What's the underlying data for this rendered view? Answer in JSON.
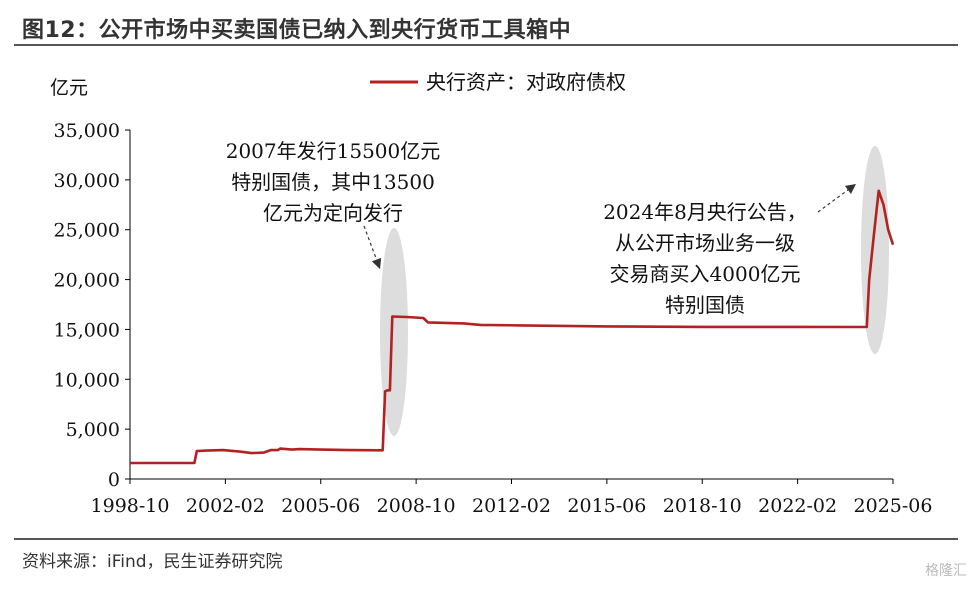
{
  "header": {
    "title": "图12：公开市场中买卖国债已纳入到央行货币工具箱中"
  },
  "footer": {
    "source": "资料来源：iFind，民生证券研究院",
    "watermark": "格隆汇"
  },
  "colors": {
    "series": "#b22222",
    "highlight": "#d9d9d9",
    "axis": "#000000"
  },
  "chart_data": {
    "type": "line",
    "title": "",
    "ylabel": "亿元",
    "xlabel": "",
    "ylim": [
      0,
      35000
    ],
    "yticks": [
      0,
      5000,
      10000,
      15000,
      20000,
      25000,
      30000,
      35000
    ],
    "ytick_labels": [
      "0",
      "5,000",
      "10,000",
      "15,000",
      "20,000",
      "25,000",
      "30,000",
      "35,000"
    ],
    "xlim": [
      "1998-10",
      "2025-06"
    ],
    "xtick_labels": [
      "1998-10",
      "2002-02",
      "2005-06",
      "2008-10",
      "2012-02",
      "2015-06",
      "2018-10",
      "2022-02",
      "2025-06"
    ],
    "legend_position": "top-center",
    "grid": false,
    "series": [
      {
        "name": "央行资产：对政府债权",
        "color": "#b22222",
        "points": [
          [
            "1998-10",
            1600
          ],
          [
            "2000-12",
            1600
          ],
          [
            "2001-01",
            1600
          ],
          [
            "2001-02",
            2800
          ],
          [
            "2001-06",
            2850
          ],
          [
            "2002-01",
            2900
          ],
          [
            "2002-08",
            2750
          ],
          [
            "2003-01",
            2600
          ],
          [
            "2003-06",
            2650
          ],
          [
            "2003-09",
            2900
          ],
          [
            "2003-12",
            2900
          ],
          [
            "2004-01",
            3050
          ],
          [
            "2004-06",
            2950
          ],
          [
            "2004-09",
            3000
          ],
          [
            "2005-06",
            2950
          ],
          [
            "2006-06",
            2900
          ],
          [
            "2007-08",
            2880
          ],
          [
            "2007-09",
            8800
          ],
          [
            "2007-10",
            8900
          ],
          [
            "2007-11",
            8900
          ],
          [
            "2007-12",
            16300
          ],
          [
            "2008-06",
            16250
          ],
          [
            "2009-01",
            16150
          ],
          [
            "2009-03",
            15700
          ],
          [
            "2010-06",
            15600
          ],
          [
            "2011-01",
            15450
          ],
          [
            "2012-06",
            15400
          ],
          [
            "2015-06",
            15300
          ],
          [
            "2018-10",
            15250
          ],
          [
            "2022-02",
            15250
          ],
          [
            "2024-07",
            15240
          ],
          [
            "2024-08",
            20000
          ],
          [
            "2024-10",
            24500
          ],
          [
            "2024-12",
            28900
          ],
          [
            "2025-02",
            27500
          ],
          [
            "2025-04",
            25000
          ],
          [
            "2025-06",
            23500
          ]
        ]
      }
    ],
    "annotations": [
      {
        "id": "a2007",
        "lines": [
          "2007年发行15500亿元",
          "特别国债，其中13500",
          "亿元为定向发行"
        ]
      },
      {
        "id": "a2024",
        "lines": [
          "2024年8月央行公告，",
          "从公开市场业务一级",
          "交易商买入4000亿元",
          "特别国债"
        ]
      }
    ]
  }
}
